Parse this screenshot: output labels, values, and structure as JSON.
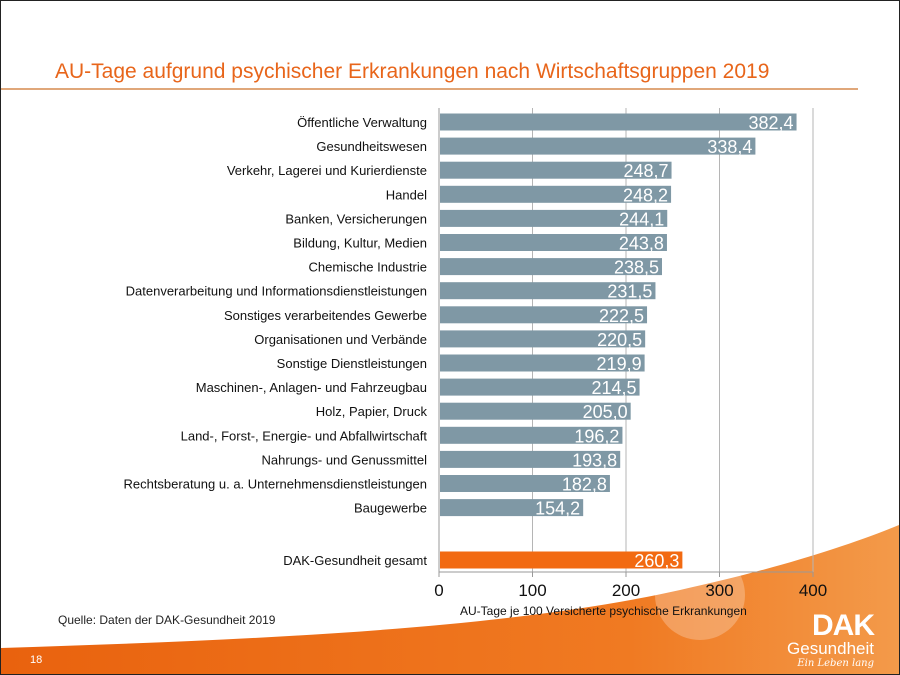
{
  "title": "AU-Tage aufgrund psychischer Erkrankungen nach Wirtschaftsgruppen 2019",
  "source": "Quelle: Daten der DAK-Gesundheit 2019",
  "page_number": "18",
  "logo": {
    "name": "DAK",
    "sub": "Gesundheit",
    "slogan": "Ein Leben lang"
  },
  "colors": {
    "bar": "#7f98a5",
    "total": "#f26a12",
    "accent": "#e8651a"
  },
  "chart_data": {
    "type": "bar",
    "orientation": "horizontal",
    "title": "AU-Tage aufgrund psychischer Erkrankungen nach Wirtschaftsgruppen 2019",
    "xlabel": "AU-Tage je 100 Versicherte psychische Erkrankungen",
    "ylabel": "",
    "xlim": [
      0,
      400
    ],
    "xticks": [
      0,
      100,
      200,
      300,
      400
    ],
    "xtick_labels": [
      "0",
      "100",
      "200",
      "300",
      "400"
    ],
    "grid": true,
    "categories": [
      "Öffentliche Verwaltung",
      "Gesundheitswesen",
      "Verkehr, Lagerei und Kurierdienste",
      "Handel",
      "Banken, Versicherungen",
      "Bildung, Kultur, Medien",
      "Chemische Industrie",
      "Datenverarbeitung und Informationsdienstleistungen",
      "Sonstiges verarbeitendes Gewerbe",
      "Organisationen und Verbände",
      "Sonstige Dienstleistungen",
      "Maschinen-, Anlagen- und Fahrzeugbau",
      "Holz, Papier, Druck",
      "Land-, Forst-,  Energie- und Abfallwirtschaft",
      "Nahrungs- und Genussmittel",
      "Rechtsberatung u. a. Unternehmensdienstleistungen",
      "Baugewerbe"
    ],
    "values": [
      382.4,
      338.4,
      248.7,
      248.2,
      244.1,
      243.8,
      238.5,
      231.5,
      222.5,
      220.5,
      219.9,
      214.5,
      205.0,
      196.2,
      193.8,
      182.8,
      154.2
    ],
    "value_labels": [
      "382,4",
      "338,4",
      "248,7",
      "248,2",
      "244,1",
      "243,8",
      "238,5",
      "231,5",
      "222,5",
      "220,5",
      "219,9",
      "214,5",
      "205,0",
      "196,2",
      "193,8",
      "182,8",
      "154,2"
    ],
    "total": {
      "category": "DAK-Gesundheit gesamt",
      "value": 260.3,
      "value_label": "260,3"
    }
  }
}
